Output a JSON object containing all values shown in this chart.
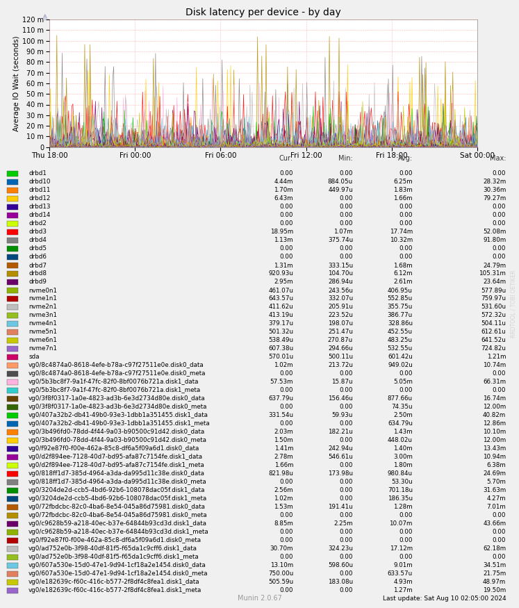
{
  "title": "Disk latency per device - by day",
  "ylabel": "Average IO Wait (seconds)",
  "watermark": "RRDTOOL / TOBI OETIKER",
  "footer": "Munin 2.0.67",
  "last_update": "Last update: Sat Aug 10 02:05:00 2024",
  "xticklabels": [
    "Thu 18:00",
    "Fri 00:00",
    "Fri 06:00",
    "Fri 12:00",
    "Fri 18:00",
    "Sat 00:00"
  ],
  "col_headers": [
    "Cur:",
    "Min:",
    "Avg:",
    "Max:"
  ],
  "legend_entries": [
    {
      "label": "drbd1",
      "color": "#00cc00",
      "cur": "0.00",
      "min": "0.00",
      "avg": "0.00",
      "max": "0.00"
    },
    {
      "label": "drbd10",
      "color": "#0066b3",
      "cur": "4.44m",
      "min": "884.05u",
      "avg": "6.25m",
      "max": "28.32m"
    },
    {
      "label": "drbd11",
      "color": "#ff8000",
      "cur": "1.70m",
      "min": "449.97u",
      "avg": "1.83m",
      "max": "30.36m"
    },
    {
      "label": "drbd12",
      "color": "#ffcc00",
      "cur": "6.43m",
      "min": "0.00",
      "avg": "1.66m",
      "max": "79.27m"
    },
    {
      "label": "drbd13",
      "color": "#330099",
      "cur": "0.00",
      "min": "0.00",
      "avg": "0.00",
      "max": "0.00"
    },
    {
      "label": "drbd14",
      "color": "#990099",
      "cur": "0.00",
      "min": "0.00",
      "avg": "0.00",
      "max": "0.00"
    },
    {
      "label": "drbd2",
      "color": "#ccff00",
      "cur": "0.00",
      "min": "0.00",
      "avg": "0.00",
      "max": "0.00"
    },
    {
      "label": "drbd3",
      "color": "#ff0000",
      "cur": "18.95m",
      "min": "1.07m",
      "avg": "17.74m",
      "max": "52.08m"
    },
    {
      "label": "drbd4",
      "color": "#808080",
      "cur": "1.13m",
      "min": "375.74u",
      "avg": "10.32m",
      "max": "91.80m"
    },
    {
      "label": "drbd5",
      "color": "#008f00",
      "cur": "0.00",
      "min": "0.00",
      "avg": "0.00",
      "max": "0.00"
    },
    {
      "label": "drbd6",
      "color": "#00487d",
      "cur": "0.00",
      "min": "0.00",
      "avg": "0.00",
      "max": "0.00"
    },
    {
      "label": "drbd7",
      "color": "#b35a00",
      "cur": "1.31m",
      "min": "333.15u",
      "avg": "1.68m",
      "max": "24.79m"
    },
    {
      "label": "drbd8",
      "color": "#b38f00",
      "cur": "920.93u",
      "min": "104.70u",
      "avg": "6.12m",
      "max": "105.31m"
    },
    {
      "label": "drbd9",
      "color": "#6b006b",
      "cur": "2.95m",
      "min": "286.94u",
      "avg": "2.61m",
      "max": "23.64m"
    },
    {
      "label": "nvme0n1",
      "color": "#8fb300",
      "cur": "461.07u",
      "min": "243.56u",
      "avg": "406.95u",
      "max": "577.89u"
    },
    {
      "label": "nvme1n1",
      "color": "#b30000",
      "cur": "643.57u",
      "min": "332.07u",
      "avg": "552.85u",
      "max": "759.97u"
    },
    {
      "label": "nvme2n1",
      "color": "#bebebe",
      "cur": "411.62u",
      "min": "205.91u",
      "avg": "355.75u",
      "max": "531.60u"
    },
    {
      "label": "nvme3n1",
      "color": "#94bf1e",
      "cur": "413.19u",
      "min": "223.52u",
      "avg": "386.77u",
      "max": "572.32u"
    },
    {
      "label": "nvme4n1",
      "color": "#6bc8e0",
      "cur": "379.17u",
      "min": "198.07u",
      "avg": "328.86u",
      "max": "504.11u"
    },
    {
      "label": "nvme5n1",
      "color": "#e08060",
      "cur": "501.32u",
      "min": "251.47u",
      "avg": "452.55u",
      "max": "612.61u"
    },
    {
      "label": "nvme6n1",
      "color": "#c8c800",
      "cur": "538.49u",
      "min": "270.87u",
      "avg": "483.25u",
      "max": "641.52u"
    },
    {
      "label": "nvme7n1",
      "color": "#9966cc",
      "cur": "607.38u",
      "min": "294.66u",
      "avg": "532.55u",
      "max": "724.82u"
    },
    {
      "label": "sda",
      "color": "#cc0066",
      "cur": "570.01u",
      "min": "500.11u",
      "avg": "601.42u",
      "max": "1.21m"
    },
    {
      "label": "vg0/8c4874a0-8618-4efe-b78a-c97f27511e0e.disk0_data",
      "color": "#ff9966",
      "cur": "1.02m",
      "min": "213.72u",
      "avg": "949.02u",
      "max": "10.74m"
    },
    {
      "label": "vg0/8c4874a0-8618-4efe-b78a-c97f27511e0e.disk0_meta",
      "color": "#4d4d4d",
      "cur": "0.00",
      "min": "0.00",
      "avg": "0.00",
      "max": "0.00"
    },
    {
      "label": "vg0/5b3bc8f7-9a1f-47fc-82f0-8bf0076b721a.disk1_data",
      "color": "#ffb3de",
      "cur": "57.53m",
      "min": "15.87u",
      "avg": "5.05m",
      "max": "66.31m"
    },
    {
      "label": "vg0/5b3bc8f7-9a1f-47fc-82f0-8bf0076b721a.disk1_meta",
      "color": "#33cccc",
      "cur": "0.00",
      "min": "0.00",
      "avg": "0.00",
      "max": "0.00"
    },
    {
      "label": "vg0/3f8f0317-1a0e-4823-ad3b-6e3d2734d80e.disk0_data",
      "color": "#664400",
      "cur": "637.79u",
      "min": "156.46u",
      "avg": "877.66u",
      "max": "16.74m"
    },
    {
      "label": "vg0/3f8f0317-1a0e-4823-ad3b-6e3d2734d80e.disk0_meta",
      "color": "#336600",
      "cur": "0.00",
      "min": "0.00",
      "avg": "74.35u",
      "max": "12.00m"
    },
    {
      "label": "vg0/407a32b2-db41-49b0-93e3-1dbb1a351455.disk1_data",
      "color": "#00cc00",
      "cur": "331.54u",
      "min": "59.93u",
      "avg": "2.50m",
      "max": "40.82m"
    },
    {
      "label": "vg0/407a32b2-db41-49b0-93e3-1dbb1a351455.disk1_meta",
      "color": "#0066b3",
      "cur": "0.00",
      "min": "0.00",
      "avg": "634.79u",
      "max": "12.86m"
    },
    {
      "label": "vg0/3b496fd0-78dd-4f44-9a03-b90500c91d42.disk0_data",
      "color": "#ff8000",
      "cur": "2.03m",
      "min": "182.21u",
      "avg": "1.43m",
      "max": "10.10m"
    },
    {
      "label": "vg0/3b496fd0-78dd-4f44-9a03-b90500c91d42.disk0_meta",
      "color": "#ffcc00",
      "cur": "1.50m",
      "min": "0.00",
      "avg": "448.02u",
      "max": "12.00m"
    },
    {
      "label": "vg0/f92e87f0-f00e-462a-85c8-df6a5f09a6d1.disk0_data",
      "color": "#330099",
      "cur": "1.41m",
      "min": "242.94u",
      "avg": "1.40m",
      "max": "13.43m"
    },
    {
      "label": "vg0/d2f894ee-7128-40d7-bd95-afa87c7154fe.disk1_data",
      "color": "#990099",
      "cur": "2.78m",
      "min": "546.61u",
      "avg": "3.00m",
      "max": "10.94m"
    },
    {
      "label": "vg0/d2f894ee-7128-40d7-bd95-afa87c7154fe.disk1_meta",
      "color": "#ccff00",
      "cur": "1.66m",
      "min": "0.00",
      "avg": "1.80m",
      "max": "6.38m"
    },
    {
      "label": "vg0/818ff1d7-385d-4964-a3da-da995d11c38e.disk0_data",
      "color": "#ff0000",
      "cur": "821.98u",
      "min": "173.98u",
      "avg": "980.84u",
      "max": "24.69m"
    },
    {
      "label": "vg0/818ff1d7-385d-4964-a3da-da995d11c38e.disk0_meta",
      "color": "#808080",
      "cur": "0.00",
      "min": "0.00",
      "avg": "53.30u",
      "max": "5.70m"
    },
    {
      "label": "vg0/3204de2d-ccb5-4bd6-92b6-108078dac05f.disk1_data",
      "color": "#008f00",
      "cur": "2.56m",
      "min": "0.00",
      "avg": "701.18u",
      "max": "31.63m"
    },
    {
      "label": "vg0/3204de2d-ccb5-4bd6-92b6-108078dac05f.disk1_meta",
      "color": "#00487d",
      "cur": "1.02m",
      "min": "0.00",
      "avg": "186.35u",
      "max": "4.27m"
    },
    {
      "label": "vg0/72fbdcbc-82c0-4ba6-8e54-045a86d75981.disk0_data",
      "color": "#b35a00",
      "cur": "1.53m",
      "min": "191.41u",
      "avg": "1.28m",
      "max": "7.01m"
    },
    {
      "label": "vg0/72fbdcbc-82c0-4ba6-8e54-045a86d75981.disk0_meta",
      "color": "#b38f00",
      "cur": "0.00",
      "min": "0.00",
      "avg": "0.00",
      "max": "0.00"
    },
    {
      "label": "vg0/c9628b59-a218-40ec-b37e-64844b93cd3d.disk1_data",
      "color": "#6b006b",
      "cur": "8.85m",
      "min": "2.25m",
      "avg": "10.07m",
      "max": "43.66m"
    },
    {
      "label": "vg0/c9628b59-a218-40ec-b37e-64844b93cd3d.disk1_meta",
      "color": "#8fb300",
      "cur": "0.00",
      "min": "0.00",
      "avg": "0.00",
      "max": "0.00"
    },
    {
      "label": "vg0/f92e87f0-f00e-462a-85c8-df6a5f09a6d1.disk0_meta",
      "color": "#b30000",
      "cur": "0.00",
      "min": "0.00",
      "avg": "0.00",
      "max": "0.00"
    },
    {
      "label": "vg0/ad752e0b-3f98-40df-81f5-f65da1c9cff6.disk1_data",
      "color": "#bebebe",
      "cur": "30.70m",
      "min": "324.23u",
      "avg": "17.12m",
      "max": "62.18m"
    },
    {
      "label": "vg0/ad752e0b-3f98-40df-81f5-f65da1c9cff6.disk1_meta",
      "color": "#94bf1e",
      "cur": "0.00",
      "min": "0.00",
      "avg": "0.00",
      "max": "0.00"
    },
    {
      "label": "vg0/607a530e-15d0-47e1-9d94-1cf18a2e1454.disk0_data",
      "color": "#6bc8e0",
      "cur": "13.10m",
      "min": "598.60u",
      "avg": "9.01m",
      "max": "34.51m"
    },
    {
      "label": "vg0/607a530e-15d0-47e1-9d94-1cf18a2e1454.disk0_meta",
      "color": "#e08060",
      "cur": "750.00u",
      "min": "0.00",
      "avg": "633.57u",
      "max": "21.75m"
    },
    {
      "label": "vg0/e182639c-f60c-416c-b577-2f8df4c8fea1.disk1_data",
      "color": "#c8c800",
      "cur": "505.59u",
      "min": "183.08u",
      "avg": "4.93m",
      "max": "48.97m"
    },
    {
      "label": "vg0/e182639c-f60c-416c-b577-2f8df4c8fea1.disk1_meta",
      "color": "#9966cc",
      "cur": "0.00",
      "min": "0.00",
      "avg": "1.27m",
      "max": "19.50m"
    }
  ]
}
